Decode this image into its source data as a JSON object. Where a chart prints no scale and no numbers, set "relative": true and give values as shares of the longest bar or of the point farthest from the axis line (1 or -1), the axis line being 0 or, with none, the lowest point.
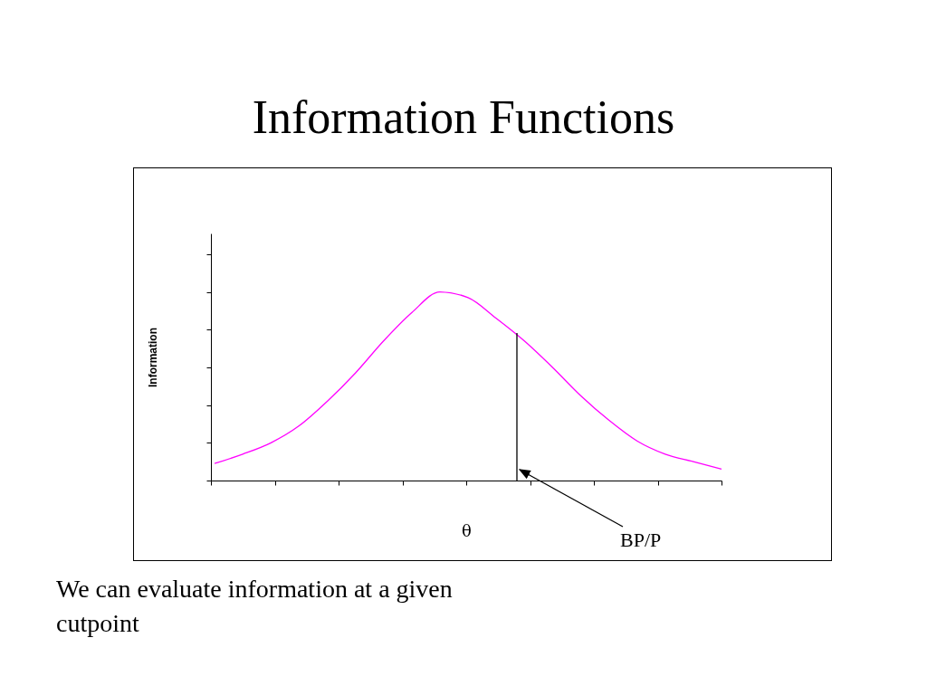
{
  "chart_data": {
    "type": "line",
    "title": "Information Functions",
    "xlabel": "θ",
    "ylabel": "Information",
    "relative": true,
    "categories": [
      null,
      null,
      null,
      null,
      null,
      null,
      null,
      null,
      null,
      null,
      null,
      null,
      null,
      null,
      null,
      null,
      null,
      null,
      null
    ],
    "series": [
      {
        "color": "#ff00ff",
        "values": [
          0.09,
          0.14,
          0.2,
          0.29,
          0.42,
          0.57,
          0.74,
          0.89,
          1,
          0.97,
          0.86,
          0.74,
          0.6,
          0.45,
          0.32,
          0.21,
          0.14,
          0.1,
          0.06
        ]
      }
    ],
    "annotations": [
      "BP/P",
      "We can evaluate information at a given cutpoint"
    ],
    "grid": false,
    "legend": false,
    "marker": "none"
  }
}
